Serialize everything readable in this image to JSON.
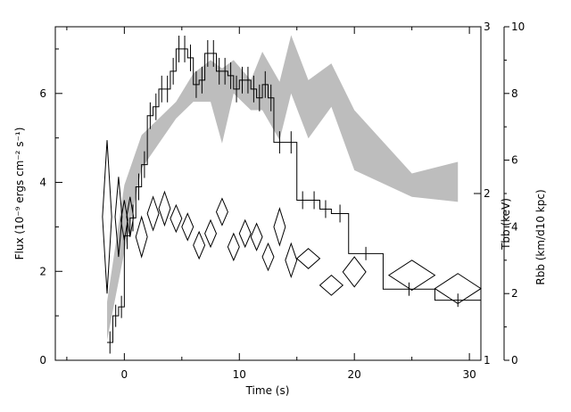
{
  "chart_data": {
    "type": "line",
    "xlabel": "Time (s)",
    "x_range": [
      -6,
      31
    ],
    "x_ticks": [
      0,
      10,
      20,
      30
    ],
    "x_tick_labels": [
      "0",
      "10",
      "20",
      "30"
    ],
    "axes": {
      "left": {
        "label": "Flux (10⁻⁹ ergs cm⁻² s⁻¹)",
        "range": [
          0,
          7.5
        ],
        "ticks": [
          0,
          2,
          4,
          6
        ],
        "tick_labels": [
          "0",
          "2",
          "4",
          "6"
        ]
      },
      "right1": {
        "label": "Tbb (keV)",
        "range": [
          1,
          3
        ],
        "ticks": [
          1,
          2,
          3
        ],
        "tick_labels": [
          "1",
          "2",
          "3"
        ]
      },
      "right2": {
        "label": "Rbb (km/d10 kpc)",
        "range": [
          0,
          10
        ],
        "ticks": [
          0,
          2,
          4,
          6,
          8,
          10
        ],
        "tick_labels": [
          "0",
          "2",
          "4",
          "6",
          "8",
          "10"
        ]
      }
    },
    "series": [
      {
        "role": "flux",
        "axis": "left",
        "style": "histogram",
        "color": "#000000",
        "bins": [
          [
            -1.5,
            -1.0,
            0.4,
            0.25
          ],
          [
            -1.0,
            -0.5,
            1.0,
            0.25
          ],
          [
            -0.5,
            0.0,
            1.2,
            0.25
          ],
          [
            0.0,
            0.5,
            2.8,
            0.3
          ],
          [
            0.5,
            1.0,
            3.2,
            0.3
          ],
          [
            1.0,
            1.5,
            3.9,
            0.3
          ],
          [
            1.5,
            2.0,
            4.4,
            0.3
          ],
          [
            2.0,
            2.5,
            5.5,
            0.3
          ],
          [
            2.5,
            3.0,
            5.7,
            0.3
          ],
          [
            3.0,
            3.5,
            6.1,
            0.3
          ],
          [
            3.5,
            4.0,
            6.1,
            0.3
          ],
          [
            4.0,
            4.5,
            6.5,
            0.3
          ],
          [
            4.5,
            5.0,
            7.0,
            0.3
          ],
          [
            5.0,
            5.5,
            7.0,
            0.3
          ],
          [
            5.5,
            6.0,
            6.8,
            0.3
          ],
          [
            6.0,
            6.5,
            6.2,
            0.3
          ],
          [
            6.5,
            7.0,
            6.3,
            0.3
          ],
          [
            7.0,
            7.5,
            6.9,
            0.3
          ],
          [
            7.5,
            8.0,
            6.9,
            0.3
          ],
          [
            8.0,
            8.5,
            6.5,
            0.3
          ],
          [
            8.5,
            9.0,
            6.5,
            0.3
          ],
          [
            9.0,
            9.5,
            6.4,
            0.3
          ],
          [
            9.5,
            10.0,
            6.1,
            0.3
          ],
          [
            10.0,
            10.5,
            6.3,
            0.3
          ],
          [
            10.5,
            11.0,
            6.3,
            0.3
          ],
          [
            11.0,
            11.5,
            6.1,
            0.3
          ],
          [
            11.5,
            12.0,
            5.9,
            0.3
          ],
          [
            12.0,
            12.5,
            6.2,
            0.3
          ],
          [
            12.5,
            13.0,
            5.9,
            0.3
          ],
          [
            13.0,
            14.0,
            4.9,
            0.25
          ],
          [
            14.0,
            15.0,
            4.9,
            0.25
          ],
          [
            15.0,
            16.0,
            3.6,
            0.2
          ],
          [
            16.0,
            17.0,
            3.6,
            0.2
          ],
          [
            17.0,
            18.0,
            3.4,
            0.2
          ],
          [
            18.0,
            19.5,
            3.3,
            0.2
          ],
          [
            19.5,
            22.5,
            2.4,
            0.15
          ],
          [
            22.5,
            27.0,
            1.6,
            0.15
          ],
          [
            27.0,
            31.0,
            1.35,
            0.15
          ]
        ]
      },
      {
        "role": "temperature",
        "axis": "right1",
        "style": "band",
        "color": "#bdbdbd",
        "points": [
          [
            -1.5,
            1.12,
            1.35
          ],
          [
            0.0,
            1.65,
            2.05
          ],
          [
            1.5,
            2.15,
            2.35
          ],
          [
            3.0,
            2.3,
            2.45
          ],
          [
            4.5,
            2.45,
            2.55
          ],
          [
            6.0,
            2.55,
            2.72
          ],
          [
            7.5,
            2.55,
            2.8
          ],
          [
            8.5,
            2.3,
            2.75
          ],
          [
            9.5,
            2.6,
            2.8
          ],
          [
            11.0,
            2.5,
            2.68
          ],
          [
            12.0,
            2.5,
            2.85
          ],
          [
            13.5,
            2.32,
            2.67
          ],
          [
            14.5,
            2.6,
            2.95
          ],
          [
            16.0,
            2.33,
            2.68
          ],
          [
            18.0,
            2.52,
            2.78
          ],
          [
            20.0,
            2.14,
            2.5
          ],
          [
            25.0,
            1.98,
            2.12
          ],
          [
            29.0,
            1.95,
            2.19
          ]
        ]
      },
      {
        "role": "radius",
        "axis": "right2",
        "style": "diamonds",
        "color": "#000000",
        "points": [
          [
            -1.5,
            4.3,
            0.4,
            2.3
          ],
          [
            -0.5,
            4.3,
            0.3,
            1.2
          ],
          [
            0.0,
            4.2,
            0.3,
            0.6
          ],
          [
            0.5,
            4.3,
            0.3,
            0.6
          ],
          [
            1.5,
            3.7,
            0.5,
            0.6
          ],
          [
            2.5,
            4.4,
            0.5,
            0.5
          ],
          [
            3.5,
            4.55,
            0.5,
            0.5
          ],
          [
            4.5,
            4.25,
            0.5,
            0.4
          ],
          [
            5.5,
            4.0,
            0.5,
            0.4
          ],
          [
            6.5,
            3.45,
            0.5,
            0.4
          ],
          [
            7.5,
            3.8,
            0.5,
            0.4
          ],
          [
            8.5,
            4.45,
            0.5,
            0.4
          ],
          [
            9.5,
            3.4,
            0.5,
            0.4
          ],
          [
            10.5,
            3.8,
            0.5,
            0.4
          ],
          [
            11.5,
            3.7,
            0.5,
            0.4
          ],
          [
            12.5,
            3.1,
            0.5,
            0.4
          ],
          [
            13.5,
            4.0,
            0.5,
            0.55
          ],
          [
            14.5,
            3.0,
            0.5,
            0.5
          ],
          [
            16.0,
            3.05,
            1.0,
            0.3
          ],
          [
            18.0,
            2.25,
            1.0,
            0.3
          ],
          [
            20.0,
            2.65,
            1.0,
            0.45
          ],
          [
            25.0,
            2.55,
            2.0,
            0.45
          ],
          [
            29.0,
            2.15,
            2.0,
            0.45
          ]
        ]
      }
    ]
  }
}
